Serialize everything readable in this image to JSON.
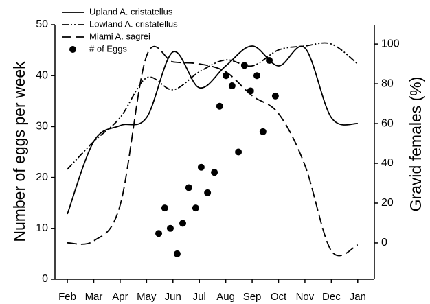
{
  "chart_data": {
    "type": "line",
    "ylabel": "Number of eggs per week",
    "y2label": "Gravid females (%)",
    "categories": [
      "Feb",
      "Mar",
      "Apr",
      "May",
      "Jun",
      "Jul",
      "Aug",
      "Sep",
      "Oct",
      "Nov",
      "Dec",
      "Jan"
    ],
    "xlim": [
      -0.47,
      11.63
    ],
    "ylim": [
      0,
      50
    ],
    "yticks": [
      0,
      10,
      20,
      30,
      40,
      50
    ],
    "y2lim": [
      -18.3,
      109.7
    ],
    "y2ticks": [
      0,
      20,
      40,
      60,
      80,
      100
    ],
    "legend": "upper left",
    "series": [
      {
        "name": "Upland A. cristatellus",
        "color": "#000000",
        "dash": "solid",
        "axis": "y2",
        "values": [
          14.5,
          51,
          59,
          63,
          96,
          78,
          89,
          99,
          89,
          98,
          63,
          60
        ]
      },
      {
        "name": "Lowland A. cristatellus",
        "color": "#000000",
        "dash": "dashdotdot",
        "axis": "y2",
        "values": [
          37,
          51,
          63,
          83,
          77,
          86,
          92,
          89,
          97,
          99,
          100,
          90
        ]
      },
      {
        "name": "Miami A. sagrei",
        "color": "#000000",
        "dash": "dashed",
        "axis": "y2",
        "values": [
          0,
          1,
          19,
          94,
          91,
          90,
          86,
          74,
          65,
          39,
          -4,
          -1
        ]
      },
      {
        "name": "# of Eggs",
        "color": "#000000",
        "kind": "scatter",
        "x": [
          3.46,
          3.69,
          3.9,
          4.16,
          4.37,
          4.6,
          4.86,
          5.07,
          5.31,
          5.57,
          5.77,
          6.01,
          6.24,
          6.48,
          6.71,
          6.94,
          7.18,
          7.41,
          7.65,
          7.88
        ],
        "values": [
          9,
          14,
          10,
          5,
          11,
          18,
          14,
          22,
          17,
          21,
          34,
          40,
          38,
          25,
          42,
          37,
          40,
          29,
          43,
          36
        ]
      }
    ]
  }
}
